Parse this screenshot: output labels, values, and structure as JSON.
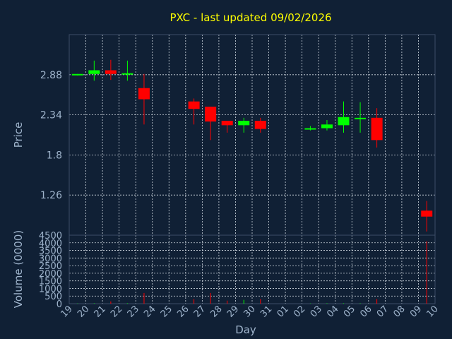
{
  "chart_data": {
    "type": "candlestick",
    "title": "PXC - last updated 09/02/2026",
    "xlabel": "Day",
    "ylabel": "Price",
    "volume_label": "Volume (0000)",
    "x_ticks": [
      "19",
      "20",
      "21",
      "22",
      "23",
      "24",
      "25",
      "26",
      "27",
      "28",
      "29",
      "30",
      "31",
      "01",
      "02",
      "03",
      "04",
      "05",
      "06",
      "07",
      "08",
      "09",
      "10"
    ],
    "y_ticks": [
      1.26,
      1.8,
      2.34,
      2.88
    ],
    "y_range": [
      0.72,
      3.42
    ],
    "volume_ticks": [
      0,
      500,
      1000,
      1500,
      2000,
      2500,
      3000,
      3500,
      4000,
      4500
    ],
    "volume_tick_labels": [
      "0",
      "500",
      "1000",
      "1500",
      "2000",
      "2500",
      "3000",
      "3500",
      "4000",
      "4500"
    ],
    "volume_range": [
      0,
      4500
    ],
    "grid": true,
    "colors": {
      "up": "#00ff00",
      "down": "#ff0000",
      "background": "#102035",
      "plot_bg": "#102035",
      "title": "#ffff00",
      "text": "#9fb4cc"
    },
    "candles": [
      {
        "day": "19",
        "open": 2.88,
        "close": 2.89,
        "high": 2.89,
        "low": 2.87,
        "volume": 20
      },
      {
        "day": "20",
        "open": 2.89,
        "close": 2.94,
        "high": 3.07,
        "low": 2.8,
        "volume": 30
      },
      {
        "day": "21",
        "open": 2.94,
        "close": 2.89,
        "high": 3.08,
        "low": 2.81,
        "volume": 150
      },
      {
        "day": "22",
        "open": 2.89,
        "close": 2.9,
        "high": 3.07,
        "low": 2.8,
        "volume": 30
      },
      {
        "day": "23",
        "open": 2.7,
        "close": 2.55,
        "high": 2.89,
        "low": 2.21,
        "volume": 700
      },
      {
        "day": "26",
        "open": 2.52,
        "close": 2.42,
        "high": 2.56,
        "low": 2.21,
        "volume": 300
      },
      {
        "day": "27",
        "open": 2.45,
        "close": 2.25,
        "high": 2.45,
        "low": 2.0,
        "volume": 700
      },
      {
        "day": "28",
        "open": 2.26,
        "close": 2.2,
        "high": 2.26,
        "low": 2.1,
        "volume": 200
      },
      {
        "day": "29",
        "open": 2.2,
        "close": 2.26,
        "high": 2.3,
        "low": 2.1,
        "volume": 250
      },
      {
        "day": "30",
        "open": 2.26,
        "close": 2.15,
        "high": 2.3,
        "low": 2.1,
        "volume": 300
      },
      {
        "day": "02",
        "open": 2.15,
        "close": 2.16,
        "high": 2.19,
        "low": 2.13,
        "volume": 20
      },
      {
        "day": "03",
        "open": 2.16,
        "close": 2.21,
        "high": 2.27,
        "low": 2.13,
        "volume": 30
      },
      {
        "day": "04",
        "open": 2.2,
        "close": 2.31,
        "high": 2.52,
        "low": 2.1,
        "volume": 30
      },
      {
        "day": "05",
        "open": 2.29,
        "close": 2.3,
        "high": 2.51,
        "low": 2.1,
        "volume": 30
      },
      {
        "day": "06",
        "open": 2.3,
        "close": 2.0,
        "high": 2.43,
        "low": 1.9,
        "volume": 300
      },
      {
        "day": "09",
        "open": 1.05,
        "close": 0.97,
        "high": 1.18,
        "low": 0.77,
        "volume": 4100
      }
    ]
  }
}
